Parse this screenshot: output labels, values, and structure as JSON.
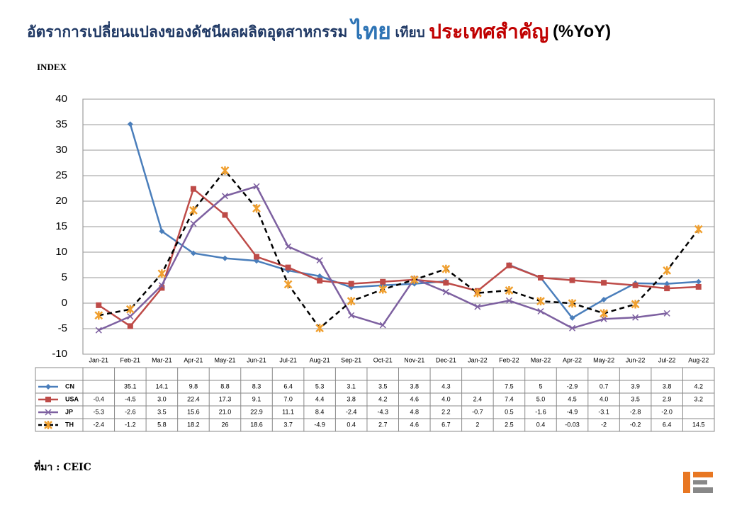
{
  "title_parts": [
    "อัตราการเปลี่ยนแปลงของดัชนีผลผลิตอุตสาหกรรม",
    "ไทย",
    "เทียบ",
    "ประเทศสำคัญ",
    "(%YoY)"
  ],
  "source": "ที่มา : CEIC",
  "chart_data": {
    "type": "line",
    "y_label": "INDEX",
    "categories": [
      "Jan-21",
      "Feb-21",
      "Mar-21",
      "Apr-21",
      "May-21",
      "Jun-21",
      "Jul-21",
      "Aug-21",
      "Sep-21",
      "Oct-21",
      "Nov-21",
      "Dec-21",
      "Jan-22",
      "Feb-22",
      "Mar-22",
      "Apr-22",
      "May-22",
      "Jun-22",
      "Jul-22",
      "Aug-22"
    ],
    "ylim": [
      -10,
      40
    ],
    "yticks": [
      -10,
      -5,
      0,
      5,
      10,
      15,
      20,
      25,
      30,
      35,
      40
    ],
    "grid": true,
    "series": [
      {
        "name": "CN",
        "color": "#4a7ebb",
        "marker": "diamond",
        "values": [
          null,
          35.1,
          14.1,
          9.8,
          8.8,
          8.3,
          6.4,
          5.3,
          3.1,
          3.5,
          3.8,
          4.3,
          null,
          7.5,
          5,
          -2.9,
          0.7,
          3.9,
          3.8,
          4.2
        ]
      },
      {
        "name": "USA",
        "color": "#be4b48",
        "marker": "square",
        "values": [
          -0.4,
          -4.5,
          3.0,
          22.4,
          17.3,
          9.1,
          7.0,
          4.4,
          3.8,
          4.2,
          4.6,
          4.0,
          2.4,
          7.4,
          5.0,
          4.5,
          4.0,
          3.5,
          2.9,
          3.2
        ],
        "value_labels": [
          "-0.4",
          "-4.5",
          "3.0",
          "22.4",
          "17.3",
          "9.1",
          "7.0",
          "4.4",
          "3.8",
          "4.2",
          "4.6",
          "4.0",
          "2.4",
          "7.4",
          "5.0",
          "4.5",
          "4.0",
          "3.5",
          "2.9",
          "3.2"
        ]
      },
      {
        "name": "JP",
        "color": "#7d60a0",
        "marker": "x",
        "values": [
          -5.3,
          -2.6,
          3.5,
          15.6,
          21.0,
          22.9,
          11.1,
          8.4,
          -2.4,
          -4.3,
          4.8,
          2.2,
          -0.7,
          0.5,
          -1.6,
          -4.9,
          -3.1,
          -2.8,
          -2.0,
          null
        ],
        "value_labels": [
          "-5.3",
          "-2.6",
          "3.5",
          "15.6",
          "21.0",
          "22.9",
          "11.1",
          "8.4",
          "-2.4",
          "-4.3",
          "4.8",
          "2.2",
          "-0.7",
          "0.5",
          "-1.6",
          "-4.9",
          "-3.1",
          "-2.8",
          "-2.0",
          null
        ]
      },
      {
        "name": "TH",
        "color": "#000000",
        "marker": "star",
        "dashed": true,
        "values": [
          -2.4,
          -1.2,
          5.8,
          18.2,
          26,
          18.6,
          3.7,
          -4.9,
          0.4,
          2.7,
          4.6,
          6.7,
          2,
          2.5,
          0.4,
          -0.03,
          -2,
          -0.2,
          6.4,
          14.5
        ]
      }
    ]
  }
}
